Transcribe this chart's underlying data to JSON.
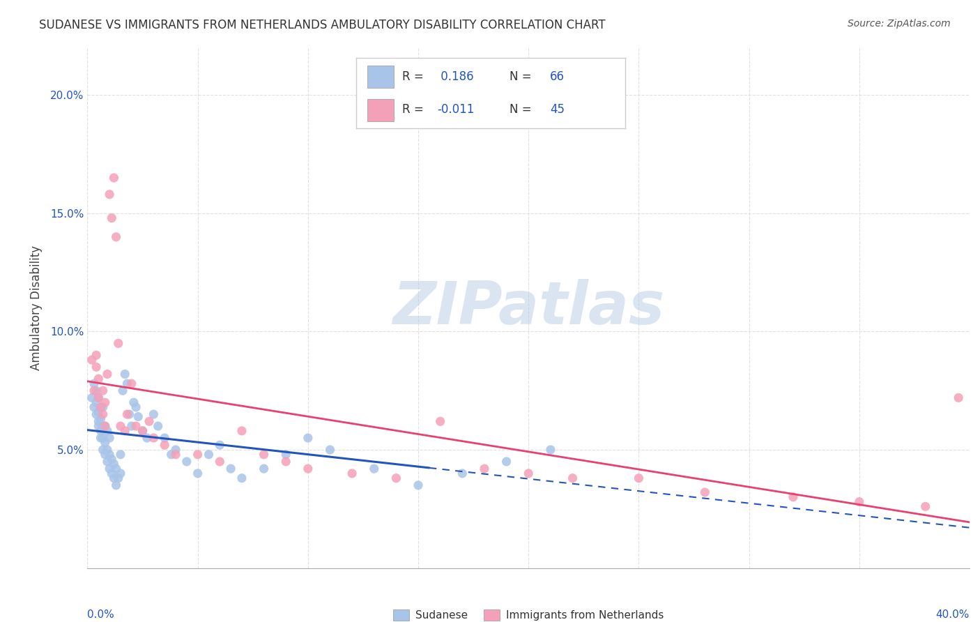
{
  "title": "SUDANESE VS IMMIGRANTS FROM NETHERLANDS AMBULATORY DISABILITY CORRELATION CHART",
  "source": "Source: ZipAtlas.com",
  "ylabel": "Ambulatory Disability",
  "series1": {
    "label": "Sudanese",
    "R": 0.186,
    "N": 66,
    "color": "#a8c4e8",
    "trend_color": "#2255bb"
  },
  "series2": {
    "label": "Immigrants from Netherlands",
    "R": -0.011,
    "N": 45,
    "color": "#f4a0b8",
    "trend_color": "#e84070"
  },
  "xlim": [
    0.0,
    0.4
  ],
  "ylim": [
    0.0,
    0.22
  ],
  "yticks": [
    0.05,
    0.1,
    0.15,
    0.2
  ],
  "ytick_labels": [
    "5.0%",
    "10.0%",
    "15.0%",
    "20.0%"
  ],
  "watermark_text": "ZIPatlas",
  "background": "#ffffff",
  "grid_color": "#dddddd",
  "sudanese_x": [
    0.002,
    0.003,
    0.003,
    0.004,
    0.004,
    0.004,
    0.005,
    0.005,
    0.005,
    0.005,
    0.006,
    0.006,
    0.006,
    0.006,
    0.007,
    0.007,
    0.007,
    0.007,
    0.008,
    0.008,
    0.008,
    0.009,
    0.009,
    0.009,
    0.01,
    0.01,
    0.01,
    0.011,
    0.011,
    0.012,
    0.012,
    0.013,
    0.013,
    0.014,
    0.015,
    0.015,
    0.016,
    0.017,
    0.018,
    0.019,
    0.02,
    0.021,
    0.022,
    0.023,
    0.025,
    0.027,
    0.03,
    0.032,
    0.035,
    0.038,
    0.04,
    0.045,
    0.05,
    0.055,
    0.06,
    0.065,
    0.07,
    0.08,
    0.09,
    0.1,
    0.11,
    0.13,
    0.15,
    0.17,
    0.19,
    0.21
  ],
  "sudanese_y": [
    0.072,
    0.068,
    0.078,
    0.065,
    0.07,
    0.075,
    0.06,
    0.062,
    0.066,
    0.072,
    0.055,
    0.058,
    0.063,
    0.068,
    0.05,
    0.055,
    0.06,
    0.068,
    0.048,
    0.053,
    0.06,
    0.045,
    0.05,
    0.058,
    0.042,
    0.048,
    0.055,
    0.04,
    0.046,
    0.038,
    0.044,
    0.035,
    0.042,
    0.038,
    0.04,
    0.048,
    0.075,
    0.082,
    0.078,
    0.065,
    0.06,
    0.07,
    0.068,
    0.064,
    0.058,
    0.055,
    0.065,
    0.06,
    0.055,
    0.048,
    0.05,
    0.045,
    0.04,
    0.048,
    0.052,
    0.042,
    0.038,
    0.042,
    0.048,
    0.055,
    0.05,
    0.042,
    0.035,
    0.04,
    0.045,
    0.05
  ],
  "netherlands_x": [
    0.002,
    0.003,
    0.004,
    0.004,
    0.005,
    0.005,
    0.006,
    0.007,
    0.007,
    0.008,
    0.008,
    0.009,
    0.01,
    0.011,
    0.012,
    0.013,
    0.014,
    0.015,
    0.017,
    0.018,
    0.02,
    0.022,
    0.025,
    0.028,
    0.03,
    0.035,
    0.04,
    0.05,
    0.06,
    0.07,
    0.08,
    0.09,
    0.1,
    0.12,
    0.14,
    0.16,
    0.18,
    0.2,
    0.22,
    0.25,
    0.28,
    0.32,
    0.35,
    0.38,
    0.395
  ],
  "netherlands_y": [
    0.088,
    0.075,
    0.09,
    0.085,
    0.08,
    0.072,
    0.068,
    0.075,
    0.065,
    0.07,
    0.06,
    0.082,
    0.158,
    0.148,
    0.165,
    0.14,
    0.095,
    0.06,
    0.058,
    0.065,
    0.078,
    0.06,
    0.058,
    0.062,
    0.055,
    0.052,
    0.048,
    0.048,
    0.045,
    0.058,
    0.048,
    0.045,
    0.042,
    0.04,
    0.038,
    0.062,
    0.042,
    0.04,
    0.038,
    0.038,
    0.032,
    0.03,
    0.028,
    0.026,
    0.072
  ]
}
